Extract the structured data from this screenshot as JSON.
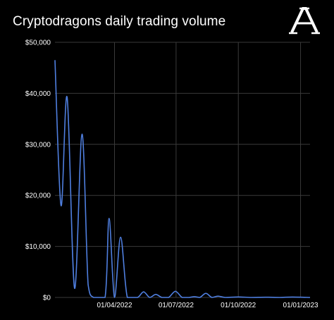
{
  "header": {
    "title": "Cryptodragons daily trading volume"
  },
  "logo": {
    "name": "publisher-logo-letter-a",
    "color": "#ffffff"
  },
  "colors": {
    "background": "#000000",
    "line": "#4f7fe0",
    "grid": "#3a3a3a",
    "text": "#ffffff"
  },
  "chart_data": {
    "type": "line",
    "title": "Cryptodragons daily trading volume",
    "xlabel": "",
    "ylabel": "",
    "ylim": [
      0,
      50000
    ],
    "xlim": [
      "2022-01-03",
      "2023-01-15"
    ],
    "yticks": [
      0,
      10000,
      20000,
      30000,
      40000,
      50000
    ],
    "ytick_labels": [
      "$0",
      "$10,000",
      "$20,000",
      "$30,000",
      "$40,000",
      "$50,000"
    ],
    "xticks": [
      "2022-04-01",
      "2022-07-01",
      "2022-10-01",
      "2023-01-01"
    ],
    "xtick_labels": [
      "01/04/2022",
      "01/07/2022",
      "01/10/2022",
      "01/01/2023"
    ],
    "grid": true,
    "series": [
      {
        "color": "#4f7fe0",
        "points": [
          [
            "2022-01-03",
            46500
          ],
          [
            "2022-01-12",
            18000
          ],
          [
            "2022-01-21",
            39200
          ],
          [
            "2022-02-01",
            1800
          ],
          [
            "2022-02-12",
            32000
          ],
          [
            "2022-02-21",
            2500
          ],
          [
            "2022-03-01",
            0
          ],
          [
            "2022-03-18",
            0
          ],
          [
            "2022-03-24",
            15500
          ],
          [
            "2022-04-01",
            0
          ],
          [
            "2022-04-10",
            11800
          ],
          [
            "2022-04-20",
            0
          ],
          [
            "2022-05-05",
            0
          ],
          [
            "2022-05-14",
            1100
          ],
          [
            "2022-05-23",
            0
          ],
          [
            "2022-06-01",
            600
          ],
          [
            "2022-06-10",
            0
          ],
          [
            "2022-06-20",
            0
          ],
          [
            "2022-06-30",
            1200
          ],
          [
            "2022-07-10",
            0
          ],
          [
            "2022-07-20",
            0
          ],
          [
            "2022-07-28",
            150
          ],
          [
            "2022-08-05",
            0
          ],
          [
            "2022-08-14",
            800
          ],
          [
            "2022-08-23",
            0
          ],
          [
            "2022-09-01",
            250
          ],
          [
            "2022-09-12",
            0
          ],
          [
            "2022-10-01",
            100
          ],
          [
            "2022-10-20",
            0
          ],
          [
            "2022-11-10",
            50
          ],
          [
            "2022-12-01",
            0
          ],
          [
            "2022-12-20",
            80
          ],
          [
            "2023-01-15",
            0
          ]
        ]
      }
    ]
  }
}
